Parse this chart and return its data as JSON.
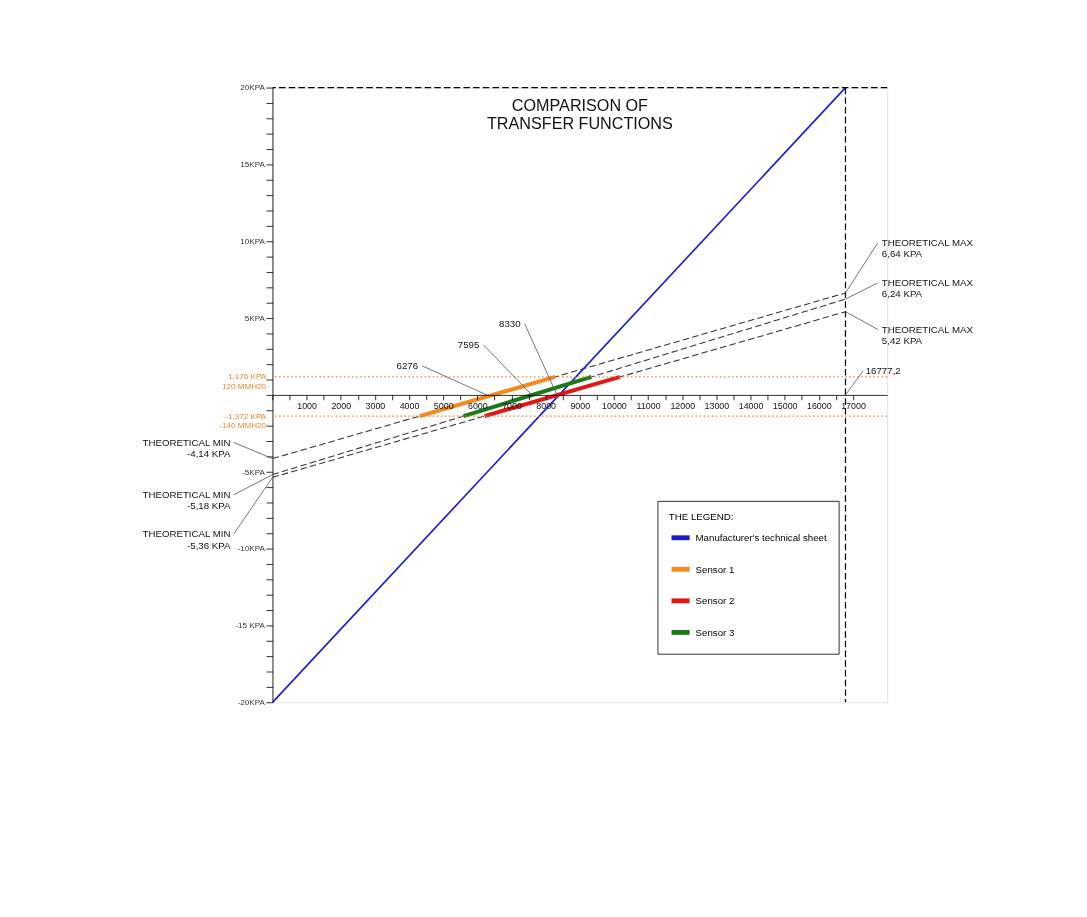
{
  "chart_data": {
    "type": "line",
    "title": "COMPARISON OF\nTRANSFER FUNCTIONS",
    "legend_title": "THE LEGEND:",
    "legend": "bottom right",
    "grid": false,
    "line_style": "solid",
    "marker": "none",
    "xlim": [
      0,
      18000
    ],
    "ylim": [
      -20,
      20
    ],
    "xticks": [
      {
        "value": 0,
        "label": null
      },
      {
        "value": 500,
        "label": null
      },
      1000,
      {
        "value": 1500,
        "label": null
      },
      2000,
      {
        "value": 2500,
        "label": null
      },
      3000,
      {
        "value": 3500,
        "label": null
      },
      4000,
      {
        "value": 4500,
        "label": null
      },
      5000,
      {
        "value": 5500,
        "label": null
      },
      6000,
      {
        "value": 6500,
        "label": null
      },
      7000,
      {
        "value": 7500,
        "label": null
      },
      8000,
      {
        "value": 8500,
        "label": null
      },
      9000,
      {
        "value": 9500,
        "label": null
      },
      10000,
      {
        "value": 10500,
        "label": null
      },
      11000,
      {
        "value": 11500,
        "label": null
      },
      12000,
      {
        "value": 12500,
        "label": null
      },
      13000,
      {
        "value": 13500,
        "label": null
      },
      14000,
      {
        "value": 14500,
        "label": null
      },
      15000,
      {
        "value": 15500,
        "label": null
      },
      16000,
      {
        "value": 16500,
        "label": null
      },
      17000
    ],
    "yticks": [
      {
        "value": -20,
        "label": "-20KPA"
      },
      {
        "value": -19,
        "label": null
      },
      {
        "value": -18,
        "label": null
      },
      {
        "value": -17,
        "label": null
      },
      {
        "value": -16,
        "label": null
      },
      {
        "value": -15,
        "label": "-15 KPA"
      },
      {
        "value": -14,
        "label": null
      },
      {
        "value": -13,
        "label": null
      },
      {
        "value": -12,
        "label": null
      },
      {
        "value": -11,
        "label": null
      },
      {
        "value": -10,
        "label": "-10KPA"
      },
      {
        "value": -9,
        "label": null
      },
      {
        "value": -8,
        "label": null
      },
      {
        "value": -7,
        "label": null
      },
      {
        "value": -6,
        "label": null
      },
      {
        "value": -5,
        "label": "-5KPA"
      },
      {
        "value": -4,
        "label": null
      },
      {
        "value": -3,
        "label": null
      },
      {
        "value": -2,
        "label": null
      },
      {
        "value": -1,
        "label": null
      },
      {
        "value": 0,
        "label": null
      },
      {
        "value": 1,
        "label": null
      },
      {
        "value": 2,
        "label": null
      },
      {
        "value": 3,
        "label": null
      },
      {
        "value": 4,
        "label": null
      },
      {
        "value": 5,
        "label": "5KPA"
      },
      {
        "value": 6,
        "label": null
      },
      {
        "value": 7,
        "label": null
      },
      {
        "value": 8,
        "label": null
      },
      {
        "value": 9,
        "label": null
      },
      {
        "value": 10,
        "label": "10KPA"
      },
      {
        "value": 11,
        "label": null
      },
      {
        "value": 12,
        "label": null
      },
      {
        "value": 13,
        "label": null
      },
      {
        "value": 14,
        "label": null
      },
      {
        "value": 15,
        "label": "15KPA"
      },
      {
        "value": 16,
        "label": null
      },
      {
        "value": 17,
        "label": null
      },
      {
        "value": 18,
        "label": null
      },
      {
        "value": 19,
        "label": null
      },
      {
        "value": 20,
        "label": "20KPA"
      }
    ],
    "series": [
      {
        "color": "#333333",
        "line_style": "dashed",
        "x": [
          0,
          16777.2
        ],
        "values": [
          -4.14,
          6.64
        ]
      },
      {
        "color": "#333333",
        "line_style": "dashed",
        "x": [
          0,
          16777.2
        ],
        "values": [
          -5.18,
          6.24
        ]
      },
      {
        "color": "#333333",
        "line_style": "dashed",
        "x": [
          0,
          16777.2
        ],
        "values": [
          -5.36,
          5.42
        ]
      },
      {
        "name": "Manufacturer's technical sheet",
        "color": "#1a1ad0",
        "x": [
          0,
          16777.2
        ],
        "values": [
          -20,
          20
        ]
      },
      {
        "name": "Sensor 1",
        "color": "#f5891e",
        "x": [
          4308,
          8273
        ],
        "values": [
          -1.372,
          1.176
        ]
      },
      {
        "name": "Sensor 2",
        "color": "#e01818",
        "x": [
          6207,
          10172
        ],
        "values": [
          -1.372,
          1.176
        ]
      },
      {
        "name": "Sensor 3",
        "color": "#1a7a1a",
        "x": [
          5594,
          9337
        ],
        "values": [
          -1.372,
          1.176
        ]
      }
    ],
    "ref_lines": [
      {
        "axis": "y",
        "value": 1.176,
        "label": "1,176 KPA\n120 MMH20",
        "color": "#e8892b",
        "line_style": "dotted"
      },
      {
        "axis": "y",
        "value": -1.372,
        "label": "-1,372 KPA\n-140 MMH20",
        "color": "#e8892b",
        "line_style": "dotted"
      },
      {
        "axis": "x",
        "value": 16777.2,
        "color": "#000000",
        "line_style": "dashed"
      },
      {
        "axis": "y",
        "value": 20,
        "color": "#000000",
        "line_style": "dashed"
      }
    ],
    "annotations": [
      {
        "text": "THEORETICAL MIN\n-4,14 KPA",
        "x": 0,
        "y": -4.14
      },
      {
        "text": "THEORETICAL MIN\n-5,18 KPA",
        "x": 0,
        "y": -5.18
      },
      {
        "text": "THEORETICAL MIN\n-5,36 KPA",
        "x": 0,
        "y": -5.36
      },
      {
        "text": "THEORETICAL MAX\n6,64 KPA",
        "x": 16777.2,
        "y": 6.64
      },
      {
        "text": "THEORETICAL MAX\n6,24 KPA",
        "x": 16777.2,
        "y": 6.24
      },
      {
        "text": "THEORETICAL MAX\n5,42 KPA",
        "x": 16777.2,
        "y": 5.42
      },
      {
        "text": "16777,2",
        "x": 16777.2,
        "y": 0
      },
      {
        "text": "8330",
        "x": 8330,
        "y": 0
      },
      {
        "text": "7595",
        "x": 7595,
        "y": 0
      },
      {
        "text": "6276",
        "x": 6276,
        "y": 0
      }
    ]
  }
}
